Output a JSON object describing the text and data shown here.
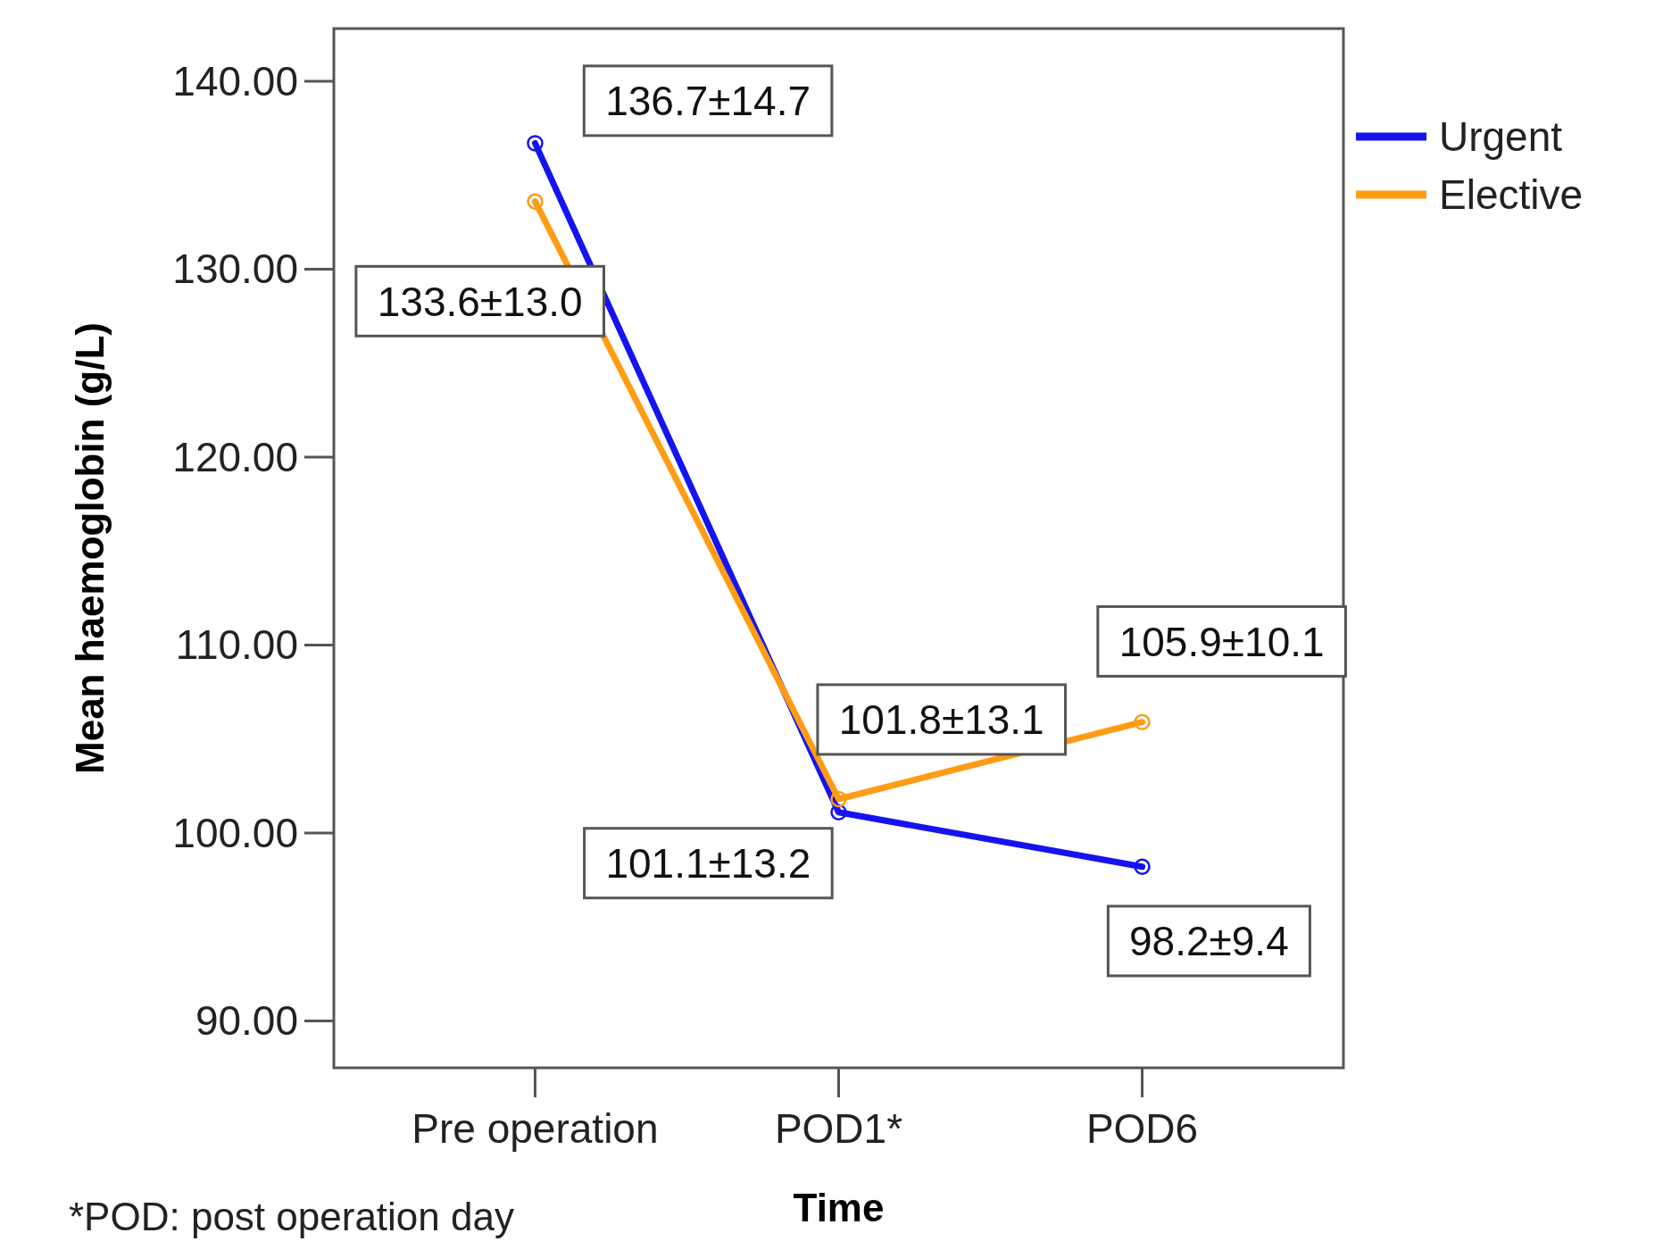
{
  "chart_data": {
    "type": "line",
    "xlabel": "Time",
    "ylabel": "Mean haemoglobin (g/L)",
    "categories": [
      "Pre operation",
      "POD1*",
      "POD6"
    ],
    "series": [
      {
        "name": "Urgent",
        "color": "#1414f0",
        "values": [
          136.7,
          101.1,
          98.2
        ],
        "value_labels": [
          "136.7±14.7",
          "101.1±13.2",
          "98.2±9.4"
        ]
      },
      {
        "name": "Elective",
        "color": "#ff9c14",
        "values": [
          133.6,
          101.8,
          105.9
        ],
        "value_labels": [
          "133.6±13.0",
          "101.8±13.1",
          "105.9±10.1"
        ]
      }
    ],
    "ylim": [
      87.5,
      142.8
    ],
    "yticks": [
      {
        "value": 90,
        "label": "90.00"
      },
      {
        "value": 100,
        "label": "100.00"
      },
      {
        "value": 110,
        "label": "110.00"
      },
      {
        "value": 120,
        "label": "120.00"
      },
      {
        "value": 130,
        "label": "130.00"
      },
      {
        "value": 140,
        "label": "140.00"
      }
    ],
    "grid": false,
    "legend": "top right",
    "marker": "circle",
    "line_style": "solid",
    "annotations": [
      "*POD: post operation day"
    ]
  }
}
